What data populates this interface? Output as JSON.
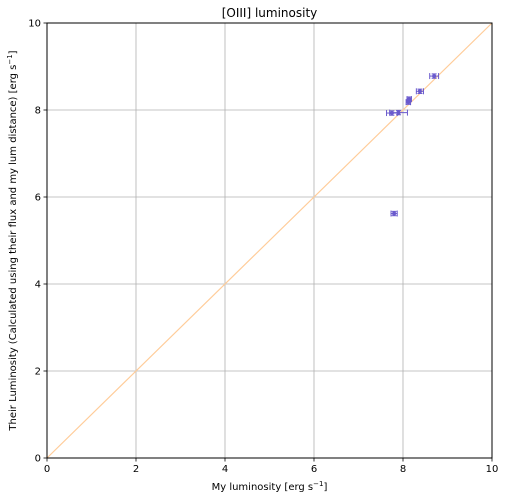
{
  "chart_data": {
    "type": "scatter",
    "title": "[OIII] luminosity",
    "xlabel_main": "My luminosity [erg s",
    "xlabel_sup": "−1",
    "xlabel_end": "]",
    "ylabel_main": "Their Luminosity (Calculated using their flux and my lum distance) [erg s",
    "ylabel_sup": "−1",
    "ylabel_end": "]",
    "xlim": [
      0,
      10
    ],
    "ylim": [
      0,
      10
    ],
    "xticks": [
      "0",
      "2",
      "4",
      "6",
      "8",
      "10"
    ],
    "yticks": [
      "0",
      "2",
      "4",
      "6",
      "8",
      "10"
    ],
    "grid": true,
    "reference_line": {
      "x": [
        0,
        10
      ],
      "y": [
        0,
        10
      ],
      "color": "#ffcc99"
    },
    "marker_color": "#6a5acd",
    "points": [
      {
        "x": 7.8,
        "y": 5.62,
        "xerr": 0.07,
        "yerr": 0.05
      },
      {
        "x": 7.75,
        "y": 7.93,
        "xerr": 0.12,
        "yerr": 0.05
      },
      {
        "x": 7.9,
        "y": 7.94,
        "xerr": 0.2,
        "yerr": 0.05
      },
      {
        "x": 8.12,
        "y": 8.18,
        "xerr": 0.05,
        "yerr": 0.05
      },
      {
        "x": 8.14,
        "y": 8.25,
        "xerr": 0.05,
        "yerr": 0.05
      },
      {
        "x": 8.38,
        "y": 8.43,
        "xerr": 0.08,
        "yerr": 0.05
      },
      {
        "x": 8.7,
        "y": 8.78,
        "xerr": 0.1,
        "yerr": 0.05
      }
    ]
  }
}
